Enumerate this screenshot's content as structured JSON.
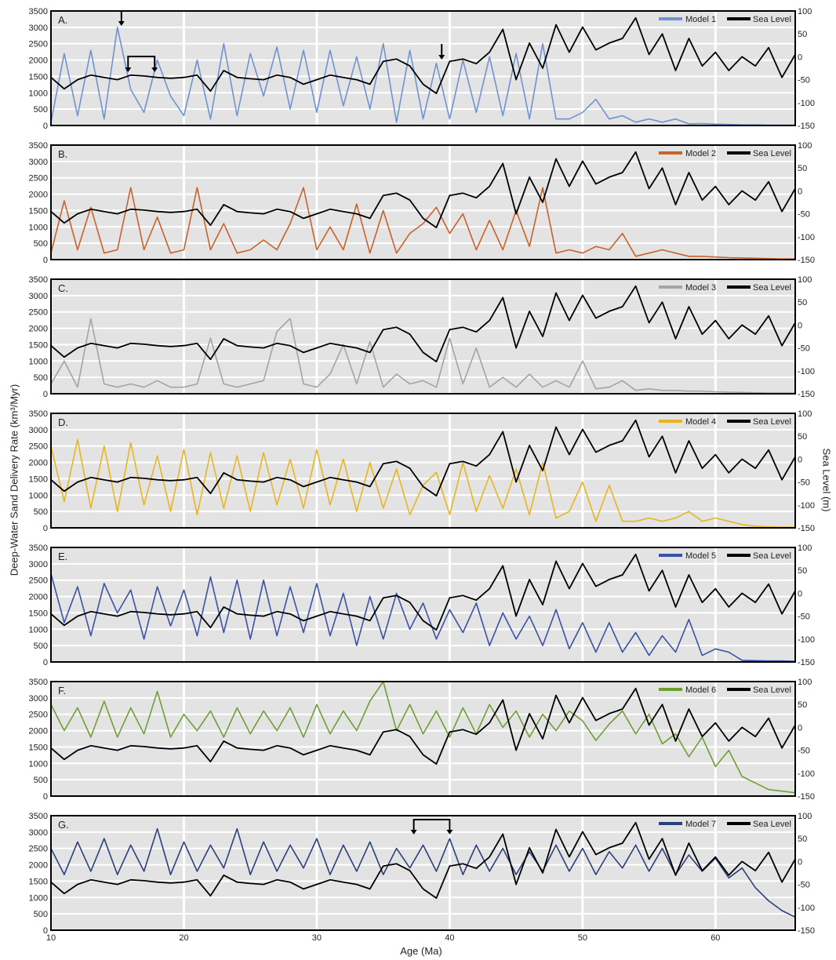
{
  "figure": {
    "ylabel_left": "Deep-Water Sand Delivery Rate (km³/Myr)",
    "ylabel_right": "Sea Level (m)",
    "xlabel": "Age (Ma)",
    "sea_level_label": "Sea Level",
    "colors": {
      "sea_level": "#000000",
      "panel_bg": "#e3e3e3",
      "grid": "#ffffff"
    }
  },
  "chart_data": {
    "type": "line",
    "xlim": [
      10,
      66
    ],
    "x_ticks": [
      10,
      20,
      30,
      40,
      50,
      60
    ],
    "y_left_lim": [
      0,
      3500
    ],
    "y_left_ticks": [
      0,
      500,
      1000,
      1500,
      2000,
      2500,
      3000,
      3500
    ],
    "y_right_lim": [
      -150,
      100
    ],
    "y_right_ticks": [
      -150,
      -100,
      -50,
      0,
      50,
      100
    ],
    "grid": true,
    "legend_position": "top-right",
    "sea_level": {
      "name": "Sea Level",
      "x": [
        10,
        11,
        12,
        13,
        14,
        15,
        16,
        17,
        18,
        19,
        20,
        21,
        22,
        23,
        24,
        25,
        26,
        27,
        28,
        29,
        30,
        31,
        32,
        33,
        34,
        35,
        36,
        37,
        38,
        39,
        40,
        41,
        42,
        43,
        44,
        45,
        46,
        47,
        48,
        49,
        50,
        51,
        52,
        53,
        54,
        55,
        56,
        57,
        58,
        59,
        60,
        61,
        62,
        63,
        64,
        65,
        66
      ],
      "y": [
        -45,
        -70,
        -50,
        -40,
        -45,
        -50,
        -40,
        -42,
        -45,
        -47,
        -45,
        -40,
        -75,
        -30,
        -45,
        -48,
        -50,
        -40,
        -45,
        -60,
        -50,
        -40,
        -45,
        -50,
        -60,
        -10,
        -5,
        -20,
        -60,
        -80,
        -10,
        -5,
        -15,
        10,
        60,
        -50,
        30,
        -25,
        70,
        10,
        65,
        15,
        30,
        40,
        85,
        5,
        50,
        -30,
        40,
        -20,
        10,
        -30,
        0,
        -20,
        20,
        -45,
        5
      ]
    },
    "panels": [
      {
        "label": "A.",
        "series_name": "Model 1",
        "color": "#6f93d2",
        "x": [
          10,
          11,
          12,
          13,
          14,
          15,
          16,
          17,
          18,
          19,
          20,
          21,
          22,
          23,
          24,
          25,
          26,
          27,
          28,
          29,
          30,
          31,
          32,
          33,
          34,
          35,
          36,
          37,
          38,
          39,
          40,
          41,
          42,
          43,
          44,
          45,
          46,
          47,
          48,
          49,
          50,
          51,
          52,
          53,
          54,
          55,
          56,
          57,
          58,
          59,
          60,
          61,
          62,
          63,
          64,
          65,
          66
        ],
        "y": [
          100,
          2200,
          300,
          2300,
          200,
          3000,
          1100,
          400,
          2000,
          900,
          300,
          2000,
          200,
          2500,
          300,
          2200,
          900,
          2400,
          500,
          2300,
          400,
          2300,
          600,
          2100,
          500,
          2500,
          100,
          2300,
          200,
          1900,
          200,
          2000,
          400,
          2100,
          300,
          2200,
          200,
          2500,
          200,
          200,
          400,
          800,
          200,
          300,
          100,
          200,
          100,
          200,
          50,
          60,
          40,
          30,
          20,
          20,
          10,
          10,
          10
        ]
      },
      {
        "label": "B.",
        "series_name": "Model 2",
        "color": "#c9622a",
        "x": [
          10,
          11,
          12,
          13,
          14,
          15,
          16,
          17,
          18,
          19,
          20,
          21,
          22,
          23,
          24,
          25,
          26,
          27,
          28,
          29,
          30,
          31,
          32,
          33,
          34,
          35,
          36,
          37,
          38,
          39,
          40,
          41,
          42,
          43,
          44,
          45,
          46,
          47,
          48,
          49,
          50,
          51,
          52,
          53,
          54,
          55,
          56,
          57,
          58,
          59,
          60,
          61,
          62,
          63,
          64,
          65,
          66
        ],
        "y": [
          200,
          1800,
          300,
          1600,
          200,
          300,
          2200,
          300,
          1300,
          200,
          300,
          2200,
          300,
          1100,
          200,
          300,
          600,
          300,
          1100,
          2200,
          300,
          1000,
          300,
          1700,
          200,
          1500,
          200,
          800,
          1100,
          1600,
          800,
          1400,
          300,
          1200,
          300,
          1500,
          400,
          2200,
          200,
          300,
          200,
          400,
          300,
          800,
          100,
          200,
          300,
          200,
          100,
          100,
          80,
          60,
          50,
          40,
          30,
          20,
          20
        ]
      },
      {
        "label": "C.",
        "series_name": "Model 3",
        "color": "#a4a4a4",
        "x": [
          10,
          11,
          12,
          13,
          14,
          15,
          16,
          17,
          18,
          19,
          20,
          21,
          22,
          23,
          24,
          25,
          26,
          27,
          28,
          29,
          30,
          31,
          32,
          33,
          34,
          35,
          36,
          37,
          38,
          39,
          40,
          41,
          42,
          43,
          44,
          45,
          46,
          47,
          48,
          49,
          50,
          51,
          52,
          53,
          54,
          55,
          56,
          57,
          58,
          59,
          60,
          61,
          62,
          63,
          64,
          65,
          66
        ],
        "y": [
          300,
          1000,
          200,
          2300,
          300,
          200,
          300,
          200,
          400,
          200,
          200,
          300,
          1700,
          300,
          200,
          300,
          400,
          1900,
          2300,
          300,
          200,
          600,
          1500,
          300,
          1600,
          200,
          600,
          300,
          400,
          200,
          1700,
          300,
          1400,
          200,
          500,
          200,
          600,
          200,
          400,
          200,
          1000,
          150,
          200,
          400,
          100,
          150,
          100,
          100,
          80,
          80,
          60,
          50,
          40,
          30,
          20,
          20,
          20
        ]
      },
      {
        "label": "D.",
        "series_name": "Model 4",
        "color": "#e8b520",
        "x": [
          10,
          11,
          12,
          13,
          14,
          15,
          16,
          17,
          18,
          19,
          20,
          21,
          22,
          23,
          24,
          25,
          26,
          27,
          28,
          29,
          30,
          31,
          32,
          33,
          34,
          35,
          36,
          37,
          38,
          39,
          40,
          41,
          42,
          43,
          44,
          45,
          46,
          47,
          48,
          49,
          50,
          51,
          52,
          53,
          54,
          55,
          56,
          57,
          58,
          59,
          60,
          61,
          62,
          63,
          64,
          65,
          66
        ],
        "y": [
          2500,
          800,
          2700,
          600,
          2500,
          500,
          2600,
          700,
          2200,
          500,
          2400,
          400,
          2300,
          600,
          2200,
          500,
          2300,
          700,
          2100,
          600,
          2400,
          700,
          2100,
          500,
          2000,
          600,
          1800,
          400,
          1300,
          1700,
          400,
          2000,
          500,
          1600,
          600,
          1800,
          400,
          2000,
          300,
          500,
          1400,
          200,
          1300,
          200,
          200,
          300,
          200,
          300,
          500,
          200,
          300,
          200,
          100,
          50,
          30,
          20,
          20
        ]
      },
      {
        "label": "E.",
        "series_name": "Model 5",
        "color": "#3b51a7",
        "x": [
          10,
          11,
          12,
          13,
          14,
          15,
          16,
          17,
          18,
          19,
          20,
          21,
          22,
          23,
          24,
          25,
          26,
          27,
          28,
          29,
          30,
          31,
          32,
          33,
          34,
          35,
          36,
          37,
          38,
          39,
          40,
          41,
          42,
          43,
          44,
          45,
          46,
          47,
          48,
          49,
          50,
          51,
          52,
          53,
          54,
          55,
          56,
          57,
          58,
          59,
          60,
          61,
          62,
          63,
          64,
          65,
          66
        ],
        "y": [
          2700,
          1200,
          2300,
          800,
          2400,
          1500,
          2200,
          700,
          2300,
          1100,
          2200,
          800,
          2600,
          900,
          2500,
          700,
          2500,
          800,
          2300,
          900,
          2400,
          800,
          2100,
          500,
          2000,
          700,
          2100,
          1000,
          1800,
          700,
          1600,
          900,
          1800,
          500,
          1500,
          700,
          1400,
          500,
          1600,
          400,
          1200,
          300,
          1200,
          300,
          900,
          200,
          800,
          300,
          1300,
          200,
          400,
          300,
          50,
          40,
          30,
          30,
          20
        ]
      },
      {
        "label": "F.",
        "series_name": "Model 6",
        "color": "#6f9e35",
        "x": [
          10,
          11,
          12,
          13,
          14,
          15,
          16,
          17,
          18,
          19,
          20,
          21,
          22,
          23,
          24,
          25,
          26,
          27,
          28,
          29,
          30,
          31,
          32,
          33,
          34,
          35,
          36,
          37,
          38,
          39,
          40,
          41,
          42,
          43,
          44,
          45,
          46,
          47,
          48,
          49,
          50,
          51,
          52,
          53,
          54,
          55,
          56,
          57,
          58,
          59,
          60,
          61,
          62,
          63,
          64,
          65,
          66
        ],
        "y": [
          2800,
          2000,
          2700,
          1800,
          2900,
          1800,
          2700,
          1900,
          3200,
          1800,
          2500,
          2000,
          2600,
          1800,
          2700,
          1900,
          2600,
          2000,
          2700,
          1800,
          2800,
          1900,
          2600,
          2000,
          2900,
          3500,
          2000,
          2800,
          1900,
          2600,
          1800,
          2700,
          1900,
          2800,
          2100,
          2600,
          1800,
          2500,
          2000,
          2600,
          2300,
          1700,
          2200,
          2600,
          1900,
          2500,
          1600,
          1900,
          1200,
          1800,
          900,
          1400,
          600,
          400,
          200,
          150,
          100
        ]
      },
      {
        "label": "G.",
        "series_name": "Model 7",
        "color": "#2b3f7c",
        "x": [
          10,
          11,
          12,
          13,
          14,
          15,
          16,
          17,
          18,
          19,
          20,
          21,
          22,
          23,
          24,
          25,
          26,
          27,
          28,
          29,
          30,
          31,
          32,
          33,
          34,
          35,
          36,
          37,
          38,
          39,
          40,
          41,
          42,
          43,
          44,
          45,
          46,
          47,
          48,
          49,
          50,
          51,
          52,
          53,
          54,
          55,
          56,
          57,
          58,
          59,
          60,
          61,
          62,
          63,
          64,
          65,
          66
        ],
        "y": [
          2500,
          1700,
          2700,
          1800,
          2800,
          1700,
          2600,
          1800,
          3100,
          1700,
          2700,
          1800,
          2600,
          1900,
          3100,
          1700,
          2700,
          1800,
          2600,
          1900,
          2800,
          1700,
          2600,
          1800,
          2700,
          1700,
          2500,
          1900,
          2600,
          1800,
          2800,
          1700,
          2600,
          1800,
          2500,
          1700,
          2400,
          1800,
          2600,
          1800,
          2500,
          1700,
          2400,
          1900,
          2600,
          1800,
          2500,
          1700,
          2300,
          1800,
          2200,
          1600,
          1900,
          1300,
          900,
          600,
          400
        ]
      }
    ],
    "annotations": [
      {
        "type": "arrow-down",
        "panel": "A.",
        "x": 15.3
      },
      {
        "type": "bracket",
        "panel": "A.",
        "x_start": 15.8,
        "x_end": 17.8
      },
      {
        "type": "arrow-down",
        "panel": "A.",
        "x": 39.4
      },
      {
        "type": "bracket",
        "panel": "G.",
        "x_start": 37.3,
        "x_end": 40.0
      }
    ]
  }
}
